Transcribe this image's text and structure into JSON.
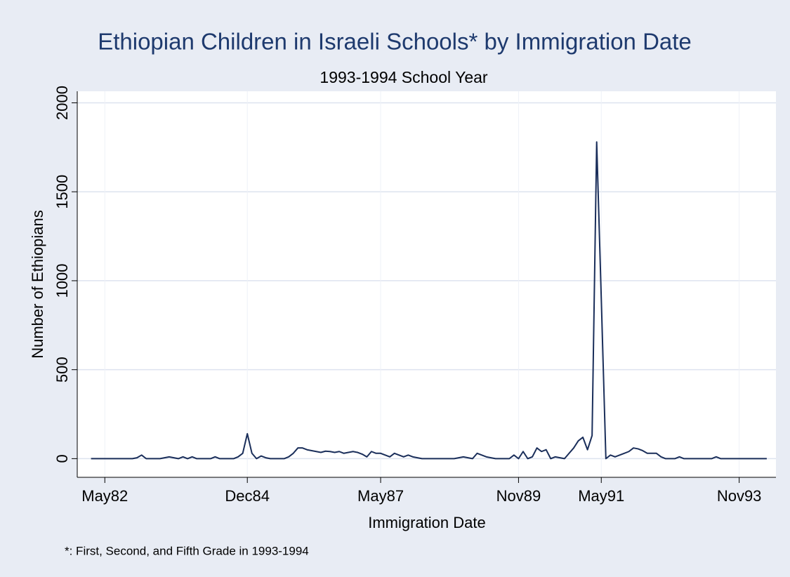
{
  "chart_data": {
    "type": "line",
    "title": "Ethiopian Children in Israeli Schools* by Immigration Date",
    "subtitle": "1993-1994 School Year",
    "x_label": "Immigration Date",
    "y_label": "Number of Ethiopians",
    "note": "*: First, Second, and Fifth Grade in 1993-1994",
    "x": [
      "1982-02",
      "1982-03",
      "1982-04",
      "1982-05",
      "1982-06",
      "1982-07",
      "1982-08",
      "1982-09",
      "1982-10",
      "1982-11",
      "1982-12",
      "1983-01",
      "1983-02",
      "1983-03",
      "1983-04",
      "1983-05",
      "1983-06",
      "1983-07",
      "1983-08",
      "1983-09",
      "1983-10",
      "1983-11",
      "1983-12",
      "1984-01",
      "1984-02",
      "1984-03",
      "1984-04",
      "1984-05",
      "1984-06",
      "1984-07",
      "1984-08",
      "1984-09",
      "1984-10",
      "1984-11",
      "1984-12",
      "1985-01",
      "1985-02",
      "1985-03",
      "1985-04",
      "1985-05",
      "1985-06",
      "1985-07",
      "1985-08",
      "1985-09",
      "1985-10",
      "1985-11",
      "1985-12",
      "1986-01",
      "1986-02",
      "1986-03",
      "1986-04",
      "1986-05",
      "1986-06",
      "1986-07",
      "1986-08",
      "1986-09",
      "1986-10",
      "1986-11",
      "1986-12",
      "1987-01",
      "1987-02",
      "1987-03",
      "1987-04",
      "1987-05",
      "1987-06",
      "1987-07",
      "1987-08",
      "1987-09",
      "1987-10",
      "1987-11",
      "1987-12",
      "1988-01",
      "1988-02",
      "1988-03",
      "1988-04",
      "1988-05",
      "1988-06",
      "1988-07",
      "1988-08",
      "1988-09",
      "1988-10",
      "1988-11",
      "1988-12",
      "1989-01",
      "1989-02",
      "1989-03",
      "1989-04",
      "1989-05",
      "1989-06",
      "1989-07",
      "1989-08",
      "1989-09",
      "1989-10",
      "1989-11",
      "1989-12",
      "1990-01",
      "1990-02",
      "1990-03",
      "1990-04",
      "1990-05",
      "1990-06",
      "1990-07",
      "1990-08",
      "1990-09",
      "1990-10",
      "1990-11",
      "1990-12",
      "1991-01",
      "1991-02",
      "1991-03",
      "1991-04",
      "1991-05",
      "1991-06",
      "1991-07",
      "1991-08",
      "1991-09",
      "1991-10",
      "1991-11",
      "1991-12",
      "1992-01",
      "1992-02",
      "1992-03",
      "1992-04",
      "1992-05",
      "1992-06",
      "1992-07",
      "1992-08",
      "1992-09",
      "1992-10",
      "1992-11",
      "1992-12",
      "1993-01",
      "1993-02",
      "1993-03",
      "1993-04",
      "1993-05",
      "1993-06",
      "1993-07",
      "1993-08",
      "1993-09",
      "1993-10",
      "1993-11",
      "1993-12",
      "1994-01",
      "1994-02",
      "1994-03",
      "1994-04",
      "1994-05"
    ],
    "series": [
      {
        "name": "Number of Ethiopians",
        "color": "#1a2e5a",
        "values": [
          0,
          0,
          0,
          0,
          0,
          0,
          0,
          0,
          0,
          0,
          5,
          20,
          0,
          0,
          0,
          0,
          5,
          10,
          5,
          0,
          10,
          0,
          10,
          0,
          0,
          0,
          0,
          10,
          0,
          0,
          0,
          0,
          10,
          30,
          140,
          30,
          0,
          15,
          5,
          0,
          0,
          0,
          0,
          10,
          30,
          60,
          60,
          50,
          45,
          40,
          35,
          42,
          40,
          35,
          40,
          30,
          35,
          40,
          35,
          25,
          10,
          40,
          30,
          30,
          20,
          10,
          30,
          20,
          10,
          20,
          10,
          5,
          0,
          0,
          0,
          0,
          0,
          0,
          0,
          0,
          5,
          10,
          5,
          0,
          30,
          20,
          10,
          5,
          0,
          0,
          0,
          0,
          20,
          0,
          40,
          0,
          10,
          60,
          40,
          50,
          0,
          10,
          5,
          0,
          30,
          60,
          100,
          120,
          50,
          130,
          1780,
          900,
          0,
          20,
          10,
          20,
          30,
          40,
          60,
          55,
          45,
          30,
          30,
          30,
          10,
          0,
          0,
          0,
          10,
          0,
          0,
          0,
          0,
          0,
          0,
          0,
          10,
          0,
          0,
          0,
          0,
          0,
          0,
          0,
          0,
          0,
          0,
          0
        ]
      }
    ],
    "xlim": [
      "1981-11",
      "1994-07"
    ],
    "xticks": [
      {
        "value": "1982-05",
        "label": "May82"
      },
      {
        "value": "1984-12",
        "label": "Dec84"
      },
      {
        "value": "1987-05",
        "label": "May87"
      },
      {
        "value": "1989-11",
        "label": "Nov89"
      },
      {
        "value": "1991-05",
        "label": "May91"
      },
      {
        "value": "1993-11",
        "label": "Nov93"
      }
    ],
    "ylim": [
      -105,
      2065
    ],
    "yticks": [
      0,
      500,
      1000,
      1500,
      2000
    ],
    "grid": true
  }
}
